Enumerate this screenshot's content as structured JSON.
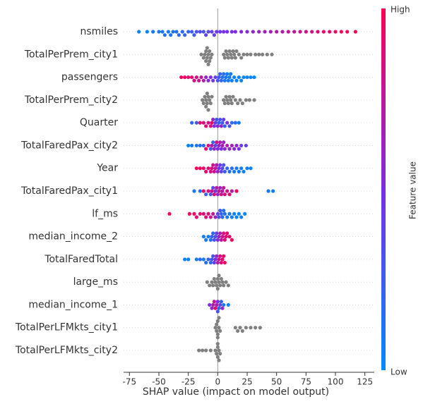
{
  "chart_data": {
    "type": "beeswarm",
    "xlabel": "SHAP value (impact on model output)",
    "xlim": [
      -80,
      133
    ],
    "xticks": [
      -75,
      -50,
      -25,
      0,
      25,
      50,
      75,
      100,
      125
    ],
    "colormap": [
      "#008bfb",
      "#7a2fe2",
      "#ff0052"
    ],
    "missing_color": "#808080",
    "colorbar_label": "Feature value",
    "colorbar_high": "High",
    "colorbar_low": "Low",
    "series": [
      {
        "name": "nsmiles",
        "values": [
          -67,
          -60,
          -55,
          -50,
          -47,
          -45,
          -42,
          -40,
          -38,
          -35,
          -33,
          -30,
          -28,
          -25,
          -22,
          -20,
          -18,
          -15,
          -12,
          -10,
          -8,
          -5,
          -3,
          -1,
          2,
          5,
          8,
          12,
          15,
          20,
          25,
          30,
          35,
          40,
          45,
          50,
          55,
          60,
          65,
          70,
          75,
          80,
          85,
          90,
          95,
          100,
          105,
          110,
          117
        ],
        "feature_values": [
          0.05,
          0.05,
          0.08,
          0.1,
          0.1,
          0.12,
          0.1,
          0.12,
          0.15,
          0.15,
          0.18,
          0.2,
          0.2,
          0.22,
          0.25,
          0.28,
          0.3,
          0.35,
          0.3,
          0.4,
          0.35,
          0.4,
          0.42,
          0.45,
          0.45,
          0.5,
          0.48,
          0.5,
          0.52,
          0.55,
          0.55,
          0.58,
          0.6,
          0.62,
          0.65,
          0.7,
          0.72,
          0.75,
          0.78,
          0.8,
          0.82,
          0.85,
          0.88,
          0.9,
          0.92,
          0.95,
          0.97,
          0.98,
          1
        ]
      },
      {
        "name": "TotalPerPrem_city1",
        "values": [
          -14,
          -12,
          -11,
          -10,
          -10,
          -9,
          -9,
          -8,
          -8,
          -7,
          -7,
          -6,
          -5,
          5,
          6,
          7,
          8,
          9,
          10,
          11,
          12,
          13,
          14,
          15,
          16,
          18,
          20,
          22,
          25,
          28,
          32,
          35,
          38,
          42,
          46
        ],
        "feature_values": [
          null,
          null,
          null,
          null,
          null,
          null,
          null,
          null,
          null,
          null,
          null,
          null,
          null,
          null,
          null,
          null,
          null,
          null,
          null,
          null,
          null,
          null,
          null,
          null,
          null,
          null,
          null,
          null,
          null,
          null,
          null,
          null,
          null,
          null,
          null
        ]
      },
      {
        "name": "passengers",
        "values": [
          -31,
          -28,
          -25,
          -22,
          -20,
          -18,
          -16,
          -14,
          -12,
          -10,
          -8,
          -6,
          -4,
          -2,
          0,
          1,
          2,
          3,
          4,
          5,
          6,
          7,
          8,
          9,
          10,
          11,
          12,
          14,
          16,
          18,
          20,
          22,
          25,
          28,
          31
        ],
        "feature_values": [
          0.95,
          0.95,
          0.9,
          0.9,
          0.85,
          0.85,
          0.8,
          0.75,
          0.7,
          0.6,
          0.55,
          0.5,
          0.45,
          0.4,
          0.3,
          0.25,
          0.2,
          0.2,
          0.15,
          0.15,
          0.1,
          0.1,
          0.1,
          0.1,
          0.08,
          0.08,
          0.06,
          0.05,
          0.05,
          0.05,
          0.04,
          0.03,
          0.03,
          0.02,
          0.02
        ]
      },
      {
        "name": "TotalPerPrem_city2",
        "values": [
          -13,
          -12,
          -11,
          -10,
          -10,
          -9,
          -9,
          -8,
          -8,
          -7,
          -6,
          -5,
          5,
          6,
          7,
          8,
          9,
          10,
          11,
          12,
          13,
          15,
          17,
          19,
          21,
          24,
          27,
          31
        ],
        "feature_values": [
          null,
          null,
          null,
          null,
          null,
          null,
          null,
          null,
          null,
          null,
          null,
          null,
          null,
          null,
          null,
          null,
          null,
          null,
          null,
          null,
          null,
          null,
          null,
          null,
          null,
          null,
          null,
          null
        ]
      },
      {
        "name": "Quarter",
        "values": [
          -22,
          -18,
          -15,
          -12,
          -10,
          -8,
          -6,
          -5,
          -4,
          -3,
          -2,
          -1,
          0,
          1,
          2,
          3,
          4,
          5,
          6,
          8,
          10,
          12,
          15,
          18
        ],
        "feature_values": [
          0.2,
          0.3,
          0.9,
          0.85,
          0.9,
          0.8,
          0.85,
          0.9,
          0.6,
          0.5,
          0.4,
          0.3,
          0.55,
          0.2,
          0.3,
          0.6,
          0.25,
          0.4,
          0.2,
          0.5,
          0.3,
          0.2,
          0.15,
          0.1
        ]
      },
      {
        "name": "TotalFaredPax_city2",
        "values": [
          -25,
          -22,
          -18,
          -15,
          -12,
          -10,
          -8,
          -6,
          -5,
          -4,
          -3,
          -2,
          -1,
          0,
          1,
          2,
          3,
          4,
          5,
          6,
          8,
          10,
          12,
          14,
          16,
          18,
          20,
          24
        ],
        "feature_values": [
          0.05,
          0.1,
          0.1,
          0.15,
          0.2,
          0.9,
          0.85,
          0.3,
          0.7,
          0.2,
          0.6,
          0.4,
          0.8,
          0.5,
          0.6,
          0.7,
          0.5,
          0.65,
          0.6,
          0.55,
          0.7,
          0.6,
          0.65,
          0.55,
          0.6,
          0.5,
          0.45,
          0.4
        ]
      },
      {
        "name": "Year",
        "values": [
          -18,
          -15,
          -12,
          -10,
          -8,
          -6,
          -5,
          -4,
          -3,
          -2,
          -1,
          0,
          1,
          2,
          3,
          4,
          5,
          6,
          8,
          10,
          12,
          14,
          16,
          18,
          20,
          22,
          25,
          28
        ],
        "feature_values": [
          0.95,
          0.95,
          0.9,
          0.9,
          0.88,
          0.85,
          0.85,
          0.8,
          0.8,
          0.75,
          0.7,
          0.6,
          0.5,
          0.45,
          0.4,
          0.35,
          0.3,
          0.25,
          0.2,
          0.15,
          0.15,
          0.1,
          0.1,
          0.08,
          0.08,
          0.05,
          0.05,
          0.05
        ]
      },
      {
        "name": "TotalFaredPax_city1",
        "values": [
          -20,
          -15,
          -12,
          -10,
          -8,
          -6,
          -5,
          -4,
          -3,
          -2,
          -1,
          0,
          1,
          2,
          3,
          4,
          5,
          6,
          8,
          10,
          12,
          16,
          43,
          47
        ],
        "feature_values": [
          0.1,
          0.15,
          0.9,
          0.2,
          0.85,
          0.3,
          0.8,
          0.4,
          0.9,
          0.5,
          0.7,
          0.6,
          0.75,
          0.65,
          0.8,
          0.7,
          0.75,
          0.85,
          0.8,
          0.9,
          0.7,
          0.95,
          0.1,
          0.1
        ]
      },
      {
        "name": "lf_ms",
        "values": [
          -41,
          -24,
          -20,
          -18,
          -15,
          -12,
          -10,
          -8,
          -6,
          -4,
          -2,
          0,
          1,
          2,
          3,
          4,
          5,
          6,
          8,
          10,
          12,
          14,
          16,
          18,
          20,
          23
        ],
        "feature_values": [
          0.95,
          0.95,
          0.95,
          0.9,
          0.9,
          0.88,
          0.85,
          0.85,
          0.8,
          0.75,
          0.6,
          0.4,
          0.3,
          0.25,
          0.2,
          0.2,
          0.15,
          0.15,
          0.1,
          0.1,
          0.08,
          0.08,
          0.05,
          0.05,
          0.05,
          0.03
        ]
      },
      {
        "name": "median_income_2",
        "values": [
          -12,
          -10,
          -8,
          -6,
          -5,
          -4,
          -3,
          -2,
          -1,
          0,
          1,
          2,
          3,
          4,
          5,
          6,
          7,
          8,
          10,
          12
        ],
        "feature_values": [
          0.05,
          0.1,
          0.1,
          0.15,
          0.2,
          0.2,
          0.3,
          0.35,
          0.4,
          0.5,
          0.6,
          0.7,
          0.75,
          0.8,
          0.85,
          0.85,
          0.9,
          0.9,
          0.9,
          0.95
        ]
      },
      {
        "name": "TotalFaredTotal",
        "values": [
          -28,
          -25,
          -18,
          -15,
          -12,
          -10,
          -8,
          -6,
          -5,
          -4,
          -3,
          -2,
          -1,
          0,
          1,
          2,
          3,
          4,
          5,
          6
        ],
        "feature_values": [
          0.05,
          0.05,
          0.1,
          0.15,
          0.1,
          0.15,
          0.2,
          0.2,
          0.3,
          0.3,
          0.4,
          0.5,
          0.6,
          0.7,
          0.8,
          0.85,
          0.9,
          0.9,
          0.95,
          0.95
        ]
      },
      {
        "name": "large_ms",
        "values": [
          -9,
          -7,
          -5,
          -4,
          -3,
          -2,
          -1,
          0,
          0,
          1,
          1,
          2,
          3,
          4,
          5,
          7,
          9
        ],
        "feature_values": [
          null,
          null,
          null,
          null,
          null,
          null,
          null,
          null,
          null,
          null,
          null,
          null,
          null,
          null,
          null,
          null,
          null
        ]
      },
      {
        "name": "median_income_1",
        "values": [
          -7,
          -5,
          -4,
          -3,
          -2,
          -1,
          0,
          0,
          1,
          2,
          3,
          4,
          5,
          9
        ],
        "feature_values": [
          0.5,
          0.6,
          0.7,
          0.8,
          0.9,
          0.7,
          0.5,
          0.3,
          0.2,
          0.4,
          0.2,
          0.6,
          0.1,
          0.05
        ]
      },
      {
        "name": "TotalPerLFMkts_city1",
        "values": [
          -2,
          -1,
          -1,
          0,
          0,
          0,
          1,
          1,
          2,
          15,
          17,
          19,
          21,
          24,
          28,
          32,
          36
        ],
        "feature_values": [
          null,
          null,
          null,
          null,
          null,
          null,
          null,
          null,
          null,
          null,
          null,
          null,
          null,
          null,
          null,
          null,
          null
        ]
      },
      {
        "name": "TotalPerLFMkts_city2",
        "values": [
          -16,
          -13,
          -10,
          -6,
          -2,
          -1,
          0,
          0,
          0,
          1,
          1,
          2
        ],
        "feature_values": [
          null,
          null,
          null,
          null,
          null,
          null,
          null,
          null,
          null,
          null,
          null,
          null
        ]
      }
    ]
  }
}
